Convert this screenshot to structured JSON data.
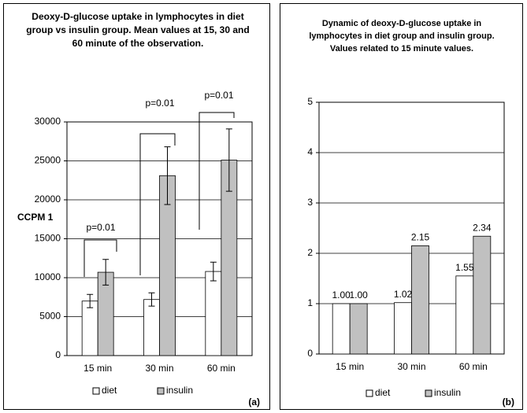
{
  "chart_data": [
    {
      "type": "bar",
      "title": "Deoxy-D-glucose uptake in lymphocytes in diet group vs insulin group. Mean values at 15, 30 and 60 minute of the observation.",
      "ylabel": "CCPM 1",
      "categories": [
        "15 min",
        "30 min",
        "60 min"
      ],
      "series": [
        {
          "name": "diet",
          "color": "#ffffff",
          "values": [
            7000,
            7200,
            10800
          ],
          "errors": [
            850,
            850,
            1200
          ]
        },
        {
          "name": "insulin",
          "color": "#c0c0c0",
          "values": [
            10700,
            23100,
            25100
          ],
          "errors": [
            1650,
            3700,
            4000
          ]
        }
      ],
      "ylim": [
        0,
        30000
      ],
      "yticks": [
        0,
        5000,
        10000,
        15000,
        20000,
        25000,
        30000
      ],
      "grid": true,
      "annotations": [
        "p=0.01",
        "p=0.01",
        "p=0.01"
      ],
      "panel_label": "(a)"
    },
    {
      "type": "bar",
      "title": "Dynamic of deoxy-D-glucose uptake in lymphocytes in diet group and insulin group. Values related to 15 minute values.",
      "categories": [
        "15 min",
        "30 min",
        "60 min"
      ],
      "series": [
        {
          "name": "diet",
          "color": "#ffffff",
          "values": [
            1.0,
            1.02,
            1.55
          ],
          "value_labels": [
            "1.00",
            "1.02",
            "1.55"
          ]
        },
        {
          "name": "insulin",
          "color": "#c0c0c0",
          "values": [
            1.0,
            2.15,
            2.34
          ],
          "value_labels": [
            "1.00",
            "2.15",
            "2.34"
          ]
        }
      ],
      "ylim": [
        0,
        5
      ],
      "yticks": [
        0,
        1,
        2,
        3,
        4,
        5
      ],
      "grid": true,
      "panel_label": "(b)"
    }
  ]
}
